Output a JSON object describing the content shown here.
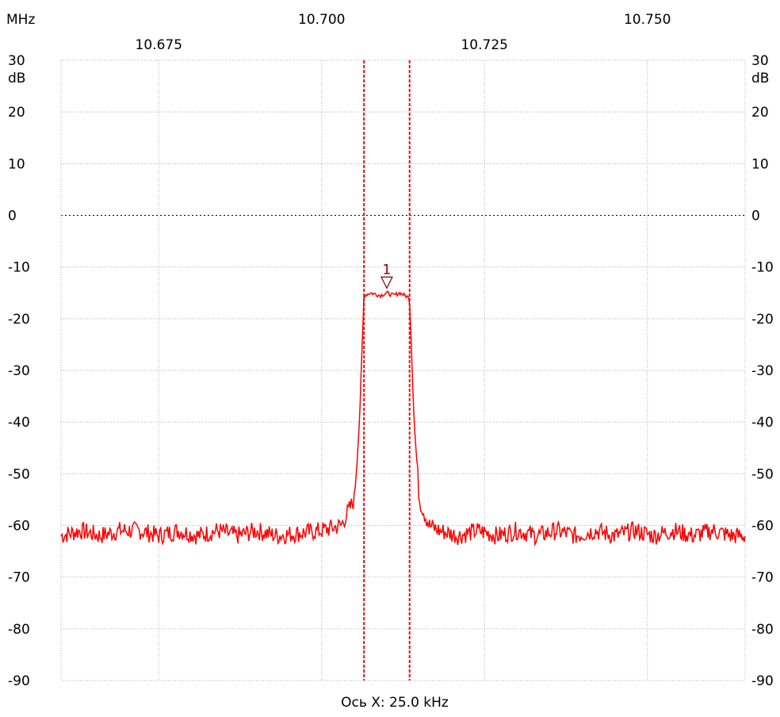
{
  "chart_data": {
    "type": "line",
    "x_unit_label": "MHz",
    "y_unit_label": "dB",
    "xlabel": "Ось X: 25.0 kHz",
    "xlim": [
      10.66,
      10.765
    ],
    "ylim": [
      -90,
      30
    ],
    "x_ticks_upper": [
      "10.700",
      "10.750"
    ],
    "x_tick_values_upper": [
      10.7,
      10.75
    ],
    "x_ticks_lower": [
      "10.675",
      "10.725"
    ],
    "x_tick_values_lower": [
      10.675,
      10.725
    ],
    "y_ticks": [
      30,
      20,
      10,
      0,
      -10,
      -20,
      -30,
      -40,
      -50,
      -60,
      -70,
      -80,
      -90
    ],
    "grid": true,
    "reference_line_db": 0,
    "cursor_lines_mhz": [
      10.7065,
      10.7135
    ],
    "marker": {
      "label": "1",
      "x": 10.71,
      "y": -15.0
    },
    "trace_color": "#ff0000",
    "series": [
      {
        "values_description_free": true,
        "x": [
          10.66,
          10.663,
          10.666,
          10.669,
          10.672,
          10.675,
          10.678,
          10.681,
          10.684,
          10.687,
          10.69,
          10.693,
          10.7,
          10.703,
          10.705,
          10.7058,
          10.7065,
          10.7075,
          10.709,
          10.71,
          10.711,
          10.712,
          10.7135,
          10.7142,
          10.715,
          10.7165,
          10.718,
          10.721,
          10.724,
          10.727,
          10.73,
          10.733,
          10.736,
          10.739,
          10.742,
          10.745,
          10.748,
          10.751,
          10.754,
          10.757,
          10.76,
          10.763,
          10.765
        ],
        "y": [
          -62,
          -61,
          -62,
          -61,
          -61,
          -62,
          -61,
          -62,
          -61,
          -62,
          -61,
          -62,
          -61,
          -60,
          -55,
          -40,
          -15.5,
          -15.0,
          -15.5,
          -15.0,
          -15.5,
          -15.0,
          -16,
          -40,
          -55,
          -60,
          -61,
          -62,
          -61,
          -62,
          -61,
          -62,
          -61,
          -62,
          -61,
          -62,
          -61,
          -62,
          -61,
          -62,
          -61,
          -62,
          -62
        ]
      }
    ]
  }
}
